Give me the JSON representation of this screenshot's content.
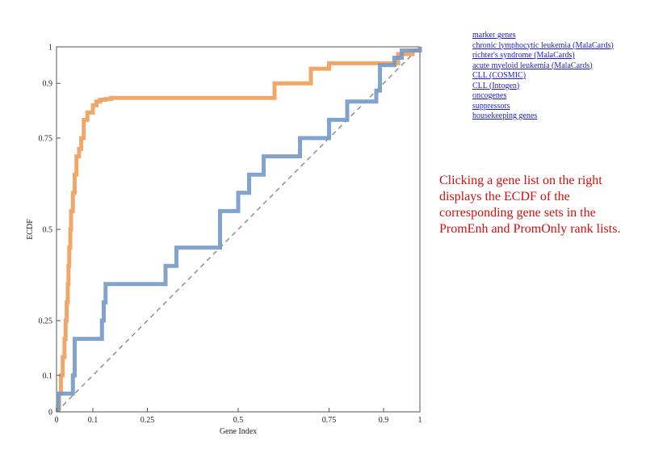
{
  "links": [
    "marker genes",
    "chronic lymphocytic leukemia (MalaCards)",
    "richter's syndrome (MalaCards)",
    "acute myeloid leukemia (MalaCards)",
    "CLL (COSMIC)",
    "CLL (Intogen)",
    "oncogenes",
    "suppressors",
    "housekeeping genes"
  ],
  "hint": "Clicking a gene list on the right displays the ECDF of the corresponding gene sets in the PromEnh and PromOnly rank lists.",
  "colors": {
    "orange": "#ee9f5a",
    "blue": "#7399c8",
    "diagonal": "#888888",
    "link": "#1a1ad6",
    "hint": "#cc1111"
  },
  "chart_data": {
    "type": "line",
    "xlabel": "Gene Index",
    "ylabel": "ECDF",
    "xlim": [
      0,
      1
    ],
    "ylim": [
      0,
      1
    ],
    "xticks": [
      0,
      0.1,
      0.25,
      0.5,
      0.75,
      0.9,
      1
    ],
    "yticks": [
      0,
      0.1,
      0.25,
      0.5,
      0.75,
      0.9,
      1
    ],
    "xtick_labels": [
      "0",
      "0.1",
      "0.25",
      "0.5",
      "0.75",
      "0.9",
      "1"
    ],
    "ytick_labels": [
      "0",
      "0.1",
      "0.25",
      "0.5",
      "0.75",
      "0.9",
      "1"
    ],
    "grid": false,
    "reference_line": {
      "x": [
        0,
        1
      ],
      "y": [
        0,
        1
      ],
      "style": "dashed"
    },
    "series": [
      {
        "color": "#ee9f5a",
        "step": true,
        "x": [
          0.003,
          0.007,
          0.012,
          0.017,
          0.022,
          0.025,
          0.028,
          0.031,
          0.033,
          0.035,
          0.038,
          0.04,
          0.045,
          0.05,
          0.055,
          0.062,
          0.068,
          0.075,
          0.085,
          0.1,
          0.11,
          0.12,
          0.135,
          0.15,
          0.4,
          0.6,
          0.7,
          0.75,
          0.94,
          0.98,
          1.0
        ],
        "y": [
          0.01,
          0.05,
          0.1,
          0.15,
          0.2,
          0.25,
          0.3,
          0.35,
          0.4,
          0.45,
          0.5,
          0.55,
          0.6,
          0.65,
          0.7,
          0.72,
          0.75,
          0.8,
          0.82,
          0.84,
          0.85,
          0.855,
          0.857,
          0.86,
          0.86,
          0.9,
          0.94,
          0.955,
          0.98,
          0.99,
          1.0
        ]
      },
      {
        "color": "#7399c8",
        "step": true,
        "x": [
          0.005,
          0.045,
          0.05,
          0.125,
          0.13,
          0.135,
          0.145,
          0.3,
          0.33,
          0.45,
          0.5,
          0.53,
          0.57,
          0.67,
          0.75,
          0.8,
          0.88,
          0.89,
          0.93,
          0.95,
          1.0
        ],
        "y": [
          0.05,
          0.1,
          0.2,
          0.25,
          0.3,
          0.35,
          0.35,
          0.4,
          0.45,
          0.55,
          0.6,
          0.65,
          0.7,
          0.75,
          0.8,
          0.85,
          0.88,
          0.95,
          0.97,
          0.99,
          1.0
        ]
      }
    ]
  }
}
